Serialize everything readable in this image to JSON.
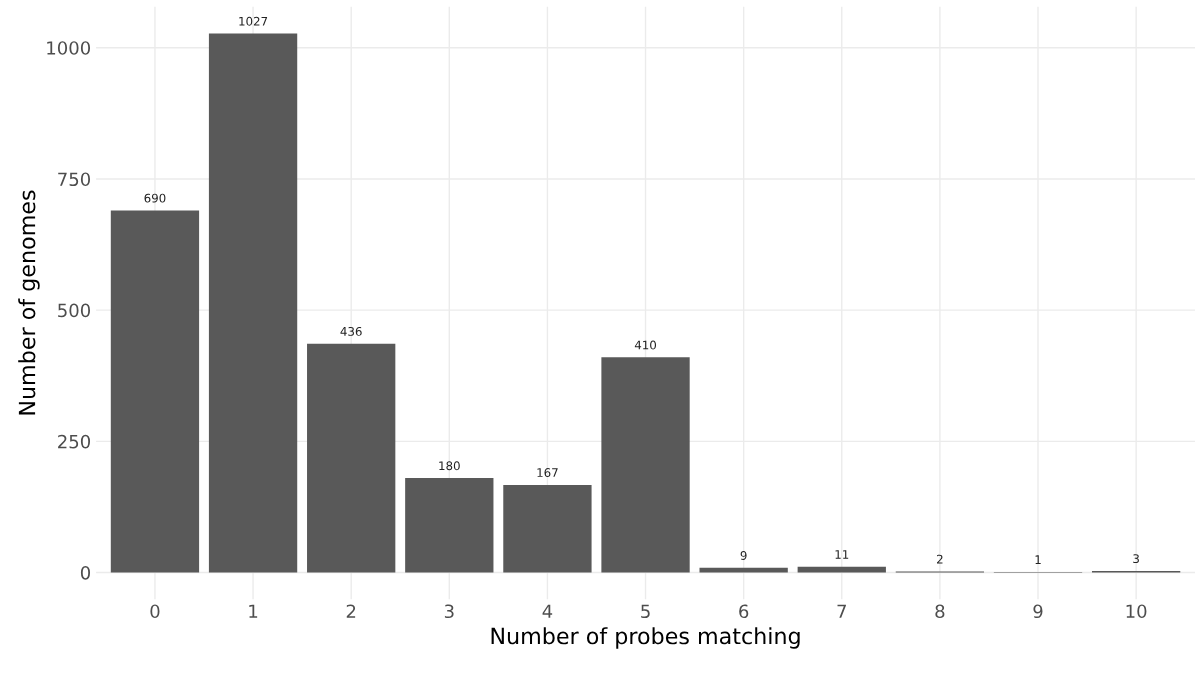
{
  "chart_data": {
    "type": "bar",
    "categories": [
      "0",
      "1",
      "2",
      "3",
      "4",
      "5",
      "6",
      "7",
      "8",
      "9",
      "10"
    ],
    "values": [
      690,
      1027,
      436,
      180,
      167,
      410,
      9,
      11,
      2,
      1,
      3
    ],
    "color": "#595959",
    "xlabel": "Number of probes matching",
    "ylabel": "Number of genomes",
    "ylim": [
      -51,
      1078
    ],
    "yticks": [
      0,
      250,
      500,
      750,
      1000
    ],
    "grid": true,
    "data_labels": true
  }
}
